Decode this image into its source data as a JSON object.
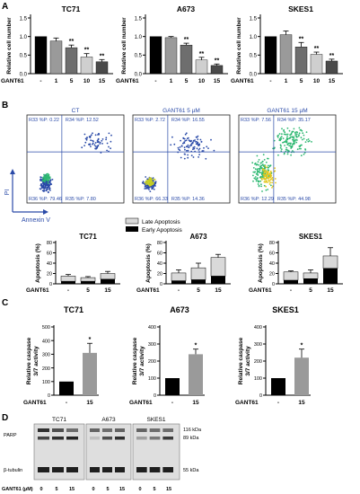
{
  "panels": {
    "a": "A",
    "b": "B",
    "c": "C",
    "d": "D"
  },
  "panelA": {
    "ylabel": "Relative cell number",
    "xlabel": "GANT61",
    "ticks_y": [
      "0.0",
      "0.5",
      "1.0",
      "1.5"
    ],
    "charts": [
      {
        "title": "TC71",
        "categories": [
          "-",
          "1",
          "5",
          "10",
          "15"
        ],
        "values": [
          1.0,
          0.88,
          0.7,
          0.45,
          0.32
        ],
        "errors": [
          0.0,
          0.08,
          0.07,
          0.09,
          0.06
        ],
        "sig": [
          "",
          "",
          "**",
          "**",
          "**"
        ]
      },
      {
        "title": "A673",
        "categories": [
          "-",
          "1",
          "5",
          "10",
          "15"
        ],
        "values": [
          1.0,
          0.97,
          0.77,
          0.37,
          0.22
        ],
        "errors": [
          0.0,
          0.03,
          0.05,
          0.07,
          0.04
        ],
        "sig": [
          "",
          "",
          "**",
          "**",
          "**"
        ]
      },
      {
        "title": "SKES1",
        "categories": [
          "-",
          "1",
          "5",
          "10",
          "15"
        ],
        "values": [
          1.0,
          1.05,
          0.72,
          0.52,
          0.34
        ],
        "errors": [
          0.0,
          0.1,
          0.12,
          0.06,
          0.05
        ],
        "sig": [
          "",
          "",
          "**",
          "**",
          "**"
        ]
      }
    ]
  },
  "panelB": {
    "plots": [
      {
        "title": "CT",
        "q": [
          "R33 %P: 0.22",
          "R34 %P: 12.52",
          "R36 %P: 79.46",
          "R35 %P: 7.80"
        ]
      },
      {
        "title": "GANT61 5 µM",
        "q": [
          "R33 %P: 2.72",
          "R34 %P: 16.55",
          "R36 %P: 66.33",
          "R35 %P: 14.36"
        ]
      },
      {
        "title": "GANT61 15 µM",
        "q": [
          "R33 %P: 7.56",
          "R34 %P: 35.17",
          "R36 %P: 12.29",
          "R35 %P: 44.98"
        ]
      }
    ],
    "axis_y": "PI",
    "axis_x": "Annexin V",
    "legend": [
      "Late Apoptosis",
      "Early Apoptosis"
    ],
    "ylabel": "Apoptosis (%)",
    "xlabel": "GANT61",
    "ticks_y": [
      "0",
      "20",
      "40",
      "60",
      "80"
    ],
    "charts": [
      {
        "title": "TC71",
        "categories": [
          "-",
          "5",
          "15"
        ],
        "early": [
          5,
          5,
          9
        ],
        "late": [
          10,
          7,
          11
        ],
        "errors": [
          3,
          2,
          4
        ]
      },
      {
        "title": "A673",
        "categories": [
          "-",
          "5",
          "15"
        ],
        "early": [
          6,
          8,
          15
        ],
        "late": [
          15,
          23,
          36
        ],
        "errors": [
          6,
          9,
          6
        ]
      },
      {
        "title": "SKES1",
        "categories": [
          "-",
          "5",
          "15"
        ],
        "early": [
          7,
          10,
          30
        ],
        "late": [
          16,
          11,
          24
        ],
        "errors": [
          2,
          6,
          16
        ]
      }
    ]
  },
  "panelC": {
    "ylabel": "Relative caspase 3/7 activity",
    "xlabel": "GANT61",
    "charts": [
      {
        "title": "TC71",
        "categories": [
          "-",
          "15"
        ],
        "values": [
          100,
          310
        ],
        "errors": [
          0,
          70
        ],
        "sig": "*",
        "ticks": [
          "0",
          "100",
          "200",
          "300",
          "400",
          "500"
        ],
        "ymax": 500
      },
      {
        "title": "A673",
        "categories": [
          "-",
          "15"
        ],
        "values": [
          100,
          240
        ],
        "errors": [
          0,
          30
        ],
        "sig": "*",
        "ticks": [
          "0",
          "100",
          "200",
          "300",
          "400"
        ],
        "ymax": 400
      },
      {
        "title": "SKES1",
        "categories": [
          "-",
          "15"
        ],
        "values": [
          100,
          220
        ],
        "errors": [
          0,
          50
        ],
        "sig": "*",
        "ticks": [
          "0",
          "100",
          "200",
          "300",
          "400"
        ],
        "ymax": 400
      }
    ]
  },
  "panelD": {
    "titles": [
      "TC71",
      "A673",
      "SKES1"
    ],
    "rows": [
      "PARP",
      "β-tubulin"
    ],
    "sizes": [
      "116 kDa",
      "89 kDa",
      "55 kDa"
    ],
    "xlabel": "GANT61 (µM)",
    "lanes": [
      "0",
      "5",
      "15",
      "0",
      "5",
      "15",
      "0",
      "5",
      "15"
    ]
  },
  "chart_data": [
    {
      "type": "bar",
      "title": "TC71",
      "xlabel": "GANT61",
      "ylabel": "Relative cell number",
      "categories": [
        "-",
        "1",
        "5",
        "10",
        "15"
      ],
      "values": [
        1.0,
        0.88,
        0.7,
        0.45,
        0.32
      ],
      "ylim": [
        0,
        1.5
      ]
    },
    {
      "type": "bar",
      "title": "A673",
      "xlabel": "GANT61",
      "ylabel": "Relative cell number",
      "categories": [
        "-",
        "1",
        "5",
        "10",
        "15"
      ],
      "values": [
        1.0,
        0.97,
        0.77,
        0.37,
        0.22
      ],
      "ylim": [
        0,
        1.5
      ]
    },
    {
      "type": "bar",
      "title": "SKES1",
      "xlabel": "GANT61",
      "ylabel": "Relative cell number",
      "categories": [
        "-",
        "1",
        "5",
        "10",
        "15"
      ],
      "values": [
        1.0,
        1.05,
        0.72,
        0.52,
        0.34
      ],
      "ylim": [
        0,
        1.5
      ]
    },
    {
      "type": "bar",
      "title": "TC71",
      "xlabel": "GANT61",
      "ylabel": "Apoptosis (%)",
      "categories": [
        "-",
        "5",
        "15"
      ],
      "series": [
        {
          "name": "Early Apoptosis",
          "values": [
            5,
            5,
            9
          ]
        },
        {
          "name": "Late Apoptosis",
          "values": [
            10,
            7,
            11
          ]
        }
      ],
      "ylim": [
        0,
        80
      ]
    },
    {
      "type": "bar",
      "title": "A673",
      "xlabel": "GANT61",
      "ylabel": "Apoptosis (%)",
      "categories": [
        "-",
        "5",
        "15"
      ],
      "series": [
        {
          "name": "Early Apoptosis",
          "values": [
            6,
            8,
            15
          ]
        },
        {
          "name": "Late Apoptosis",
          "values": [
            15,
            23,
            36
          ]
        }
      ],
      "ylim": [
        0,
        80
      ]
    },
    {
      "type": "bar",
      "title": "SKES1",
      "xlabel": "GANT61",
      "ylabel": "Apoptosis (%)",
      "categories": [
        "-",
        "5",
        "15"
      ],
      "series": [
        {
          "name": "Early Apoptosis",
          "values": [
            7,
            10,
            30
          ]
        },
        {
          "name": "Late Apoptosis",
          "values": [
            16,
            11,
            24
          ]
        }
      ],
      "ylim": [
        0,
        80
      ]
    },
    {
      "type": "bar",
      "title": "TC71",
      "xlabel": "GANT61",
      "ylabel": "Relative caspase 3/7 activity",
      "categories": [
        "-",
        "15"
      ],
      "values": [
        100,
        310
      ],
      "ylim": [
        0,
        500
      ]
    },
    {
      "type": "bar",
      "title": "A673",
      "xlabel": "GANT61",
      "ylabel": "Relative caspase 3/7 activity",
      "categories": [
        "-",
        "15"
      ],
      "values": [
        100,
        240
      ],
      "ylim": [
        0,
        400
      ]
    },
    {
      "type": "bar",
      "title": "SKES1",
      "xlabel": "GANT61",
      "ylabel": "Relative caspase 3/7 activity",
      "categories": [
        "-",
        "15"
      ],
      "values": [
        100,
        220
      ],
      "ylim": [
        0,
        400
      ]
    }
  ],
  "colors": {
    "bar_fills": [
      "#000000",
      "#9a9a9a",
      "#6e6e6e",
      "#cfcfcf",
      "#4a4a4a"
    ],
    "early": "#000000",
    "late": "#d9d9d9",
    "caspase": [
      "#000000",
      "#9a9a9a"
    ],
    "grid_line": "#2a4aa8"
  }
}
